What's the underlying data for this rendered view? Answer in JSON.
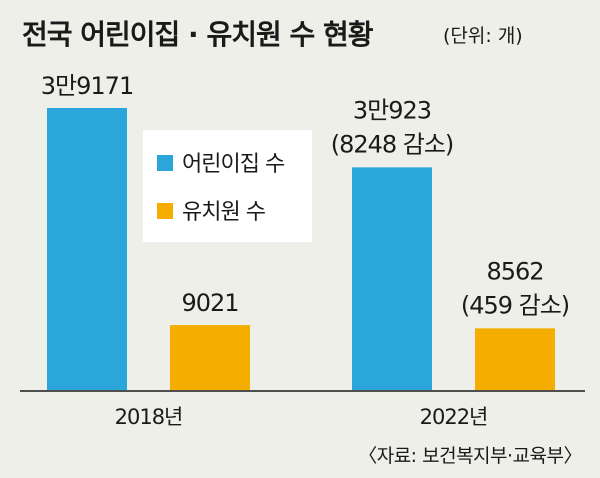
{
  "colors": {
    "daycare": "#2aa6da",
    "kindergarten": "#f5ad00",
    "background": "#efefe9",
    "legend_box": "#ffffff",
    "axis": "#1a1a1a"
  },
  "chart_data": {
    "type": "bar",
    "title": "전국 어린이집 · 유치원 수 현황",
    "unit_note": "(단위: 개)",
    "categories": [
      "2018년",
      "2022년"
    ],
    "series": [
      {
        "name": "어린이집 수",
        "values": [
          39171,
          30923
        ],
        "labels": [
          "3만9171",
          "3만923"
        ],
        "sublabels": [
          "",
          "(8248 감소)"
        ]
      },
      {
        "name": "유치원 수",
        "values": [
          9021,
          8562
        ],
        "labels": [
          "9021",
          "8562"
        ],
        "sublabels": [
          "",
          "(459 감소)"
        ]
      }
    ],
    "ylim": [
      0,
      39171
    ],
    "legend_position": "center",
    "grid": false,
    "source": "〈자료: 보건복지부·교육부〉"
  }
}
